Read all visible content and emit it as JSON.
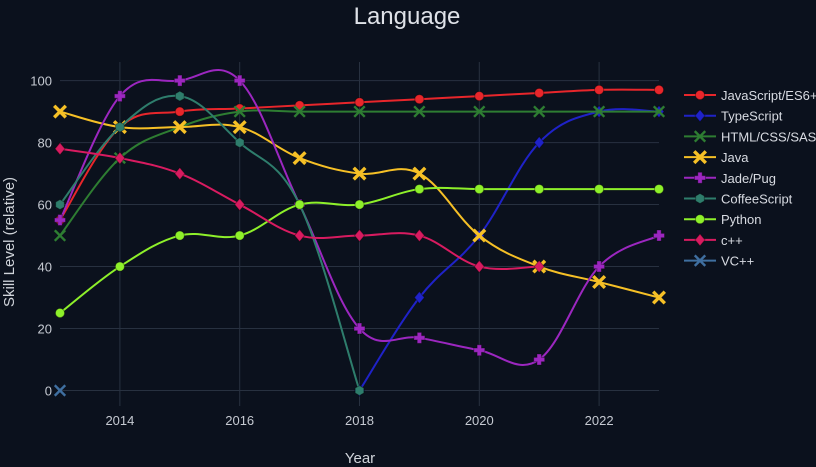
{
  "chart_data": {
    "type": "line",
    "title": "Language",
    "xlabel": "Year",
    "ylabel": "Skill Level (relative)",
    "x": [
      2013,
      2014,
      2015,
      2016,
      2017,
      2018,
      2019,
      2020,
      2021,
      2022,
      2023
    ],
    "xlim": [
      2013,
      2023
    ],
    "ylim": [
      -5,
      106
    ],
    "xticks": [
      2014,
      2016,
      2018,
      2020,
      2022
    ],
    "yticks": [
      0,
      20,
      40,
      60,
      80,
      100
    ],
    "grid": true,
    "legend_position": "right",
    "series": [
      {
        "name": "JavaScript/ES6+",
        "color": "#e8262b",
        "marker": "circle",
        "values": [
          55,
          85,
          90,
          91,
          92,
          93,
          94,
          95,
          96,
          97,
          97
        ]
      },
      {
        "name": "TypeScript",
        "color": "#1f22c8",
        "marker": "diamond",
        "values": [
          null,
          null,
          null,
          null,
          null,
          0,
          30,
          50,
          80,
          90,
          90
        ]
      },
      {
        "name": "HTML/CSS/SASS",
        "color": "#2e7d32",
        "marker": "x-thin",
        "values": [
          50,
          75,
          85,
          90,
          90,
          90,
          90,
          90,
          90,
          90,
          90
        ]
      },
      {
        "name": "Java",
        "color": "#f6c026",
        "marker": "x",
        "values": [
          90,
          85,
          85,
          85,
          75,
          70,
          70,
          50,
          40,
          35,
          30
        ]
      },
      {
        "name": "Jade/Pug",
        "color": "#9c27c0",
        "marker": "cross",
        "values": [
          55,
          95,
          100,
          100,
          60,
          20,
          17,
          13,
          10,
          40,
          50
        ]
      },
      {
        "name": "CoffeeScript",
        "color": "#2e7d6c",
        "marker": "hexagon",
        "values": [
          60,
          85,
          95,
          80,
          60,
          0,
          null,
          null,
          null,
          null,
          null
        ]
      },
      {
        "name": "Python",
        "color": "#8ef02a",
        "marker": "circle",
        "values": [
          25,
          40,
          50,
          50,
          60,
          60,
          65,
          65,
          65,
          65,
          65
        ]
      },
      {
        "name": "c++",
        "color": "#d81b60",
        "marker": "diamond",
        "values": [
          78,
          75,
          70,
          60,
          50,
          50,
          50,
          40,
          40,
          null,
          null
        ]
      },
      {
        "name": "VC++",
        "color": "#3f6fa0",
        "marker": "x-thin",
        "values": [
          0,
          null,
          null,
          null,
          null,
          null,
          null,
          null,
          null,
          null,
          null
        ]
      }
    ]
  }
}
